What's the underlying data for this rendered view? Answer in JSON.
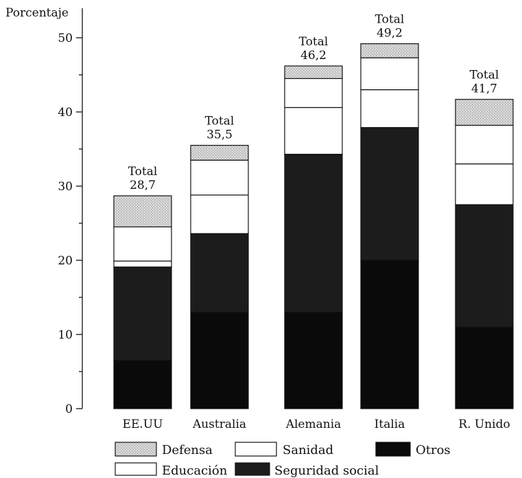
{
  "chart_data": {
    "type": "bar",
    "stacked": true,
    "ylabel": "Porcentaje",
    "xlabel": "",
    "ylim": [
      0,
      50
    ],
    "yticks": [
      "0",
      "10",
      "20",
      "30",
      "40",
      "50"
    ],
    "minor_tick_step": 5,
    "grid": false,
    "legend_position": "bottom",
    "categories": [
      "EE.UU",
      "Australia",
      "Alemania",
      "Italia",
      "R. Unido"
    ],
    "series": [
      {
        "name": "Otros",
        "values": [
          6.5,
          13.0,
          13.0,
          20.0,
          11.0
        ],
        "color": "#0a0a0a"
      },
      {
        "name": "Seguridad social",
        "values": [
          12.6,
          10.6,
          21.3,
          17.9,
          16.5
        ],
        "color": "#1c1c1c"
      },
      {
        "name": "Educación",
        "values": [
          0.8,
          5.2,
          6.3,
          5.1,
          5.5
        ],
        "color": "#ffffff"
      },
      {
        "name": "Sanidad",
        "values": [
          4.6,
          4.7,
          3.9,
          4.3,
          5.2
        ],
        "color": "#ffffff"
      },
      {
        "name": "Defensa",
        "values": [
          4.2,
          2.0,
          1.7,
          1.9,
          3.5
        ],
        "color": "#cfcfcf"
      }
    ],
    "totals": [
      {
        "label": "Total",
        "value": "28,7"
      },
      {
        "label": "Total",
        "value": "35,5"
      },
      {
        "label": "Total",
        "value": "46,2"
      },
      {
        "label": "Total",
        "value": "49,2"
      },
      {
        "label": "Total",
        "value": "41,7"
      }
    ],
    "total_values": [
      28.7,
      35.5,
      46.2,
      49.2,
      41.7
    ],
    "legend": [
      {
        "name": "Defensa",
        "swatch": "dotted-gray"
      },
      {
        "name": "Sanidad",
        "swatch": "white"
      },
      {
        "name": "Otros",
        "swatch": "black"
      },
      {
        "name": "Educación",
        "swatch": "white"
      },
      {
        "name": "Seguridad social",
        "swatch": "dark"
      }
    ]
  }
}
